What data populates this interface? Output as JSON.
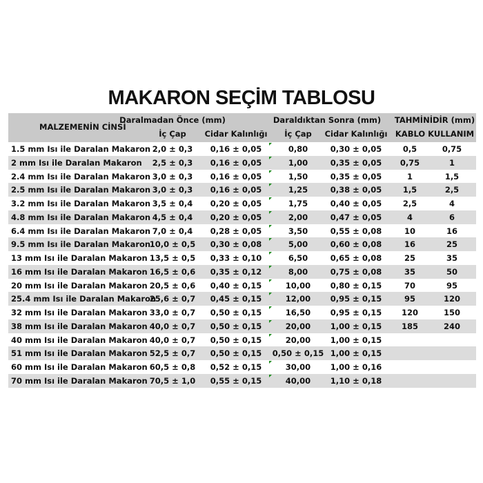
{
  "title": "MAKARON SEÇİM TABLOSU",
  "header": {
    "material": "MALZEMENİN CİNSİ",
    "before": "Daralmadan Önce (mm)",
    "after": "Daraldıktan Sonra (mm)",
    "estimate": "TAHMİNİDİR (mm)",
    "inner1": "İç Çap",
    "wall1": "Cidar Kalınlığı",
    "inner2": "İç Çap",
    "wall2": "Cidar Kalınlığı",
    "cable": "KABLO KULLANIM"
  },
  "rows": [
    [
      "1.5 mm Isı ile Daralan Makaron",
      "2,0 ± 0,3",
      "0,16 ± 0,05",
      "0,80",
      "0,30 ± 0,05",
      "0,5",
      "0,75"
    ],
    [
      "2 mm Isı ile Daralan Makaron",
      "2,5 ± 0,3",
      "0,16 ± 0,05",
      "1,00",
      "0,35 ± 0,05",
      "0,75",
      "1"
    ],
    [
      "2.4 mm Isı ile Daralan Makaron",
      "3,0 ± 0,3",
      "0,16 ± 0,05",
      "1,50",
      "0,35 ± 0,05",
      "1",
      "1,5"
    ],
    [
      "2.5 mm Isı ile Daralan Makaron",
      "3,0 ± 0,3",
      "0,16 ± 0,05",
      "1,25",
      "0,38 ± 0,05",
      "1,5",
      "2,5"
    ],
    [
      "3.2 mm Isı ile Daralan Makaron",
      "3,5 ± 0,4",
      "0,20 ± 0,05",
      "1,75",
      "0,40 ± 0,05",
      "2,5",
      "4"
    ],
    [
      "4.8 mm Isı ile Daralan Makaron",
      "4,5 ± 0,4",
      "0,20 ± 0,05",
      "2,00",
      "0,47 ± 0,05",
      "4",
      "6"
    ],
    [
      "6.4 mm Isı ile Daralan Makaron",
      "7,0 ± 0,4",
      "0,28 ± 0,05",
      "3,50",
      "0,55 ± 0,08",
      "10",
      "16"
    ],
    [
      "9.5 mm Isı ile Daralan Makaron",
      "10,0 ± 0,5",
      "0,30 ± 0,08",
      "5,00",
      "0,60 ± 0,08",
      "16",
      "25"
    ],
    [
      "13 mm Isı ile Daralan Makaron",
      "13,5 ± 0,5",
      "0,33 ± 0,10",
      "6,50",
      "0,65 ± 0,08",
      "25",
      "35"
    ],
    [
      "16 mm Isı ile Daralan Makaron",
      "16,5 ± 0,6",
      "0,35 ± 0,12",
      "8,00",
      "0,75 ± 0,08",
      "35",
      "50"
    ],
    [
      "20 mm Isı ile Daralan Makaron",
      "20,5 ± 0,6",
      "0,40 ± 0,15",
      "10,00",
      "0,80 ± 0,15",
      "70",
      "95"
    ],
    [
      "25.4 mm Isı ile Daralan Makaron",
      "25,6 ± 0,7",
      "0,45 ± 0,15",
      "12,00",
      "0,95 ± 0,15",
      "95",
      "120"
    ],
    [
      "32 mm Isı ile Daralan Makaron",
      "33,0 ± 0,7",
      "0,50 ± 0,15",
      "16,50",
      "0,95 ± 0,15",
      "120",
      "150"
    ],
    [
      "38 mm Isı ile Daralan Makaron",
      "40,0 ± 0,7",
      "0,50 ± 0,15",
      "20,00",
      "1,00 ± 0,15",
      "185",
      "240"
    ],
    [
      "40 mm Isı ile Daralan Makaron",
      "40,0 ± 0,7",
      "0,50 ± 0,15",
      "20,00",
      "1,00 ± 0,15",
      "",
      ""
    ],
    [
      "51 mm Isı ile Daralan Makaron",
      "52,5 ± 0,7",
      "0,50 ± 0,15",
      "0,50 ± 0,15",
      "1,00 ± 0,15",
      "",
      ""
    ],
    [
      "60 mm Isı ile Daralan Makaron",
      "60,5 ± 0,8",
      "0,52 ± 0,15",
      "30,00",
      "1,00 ± 0,16",
      "",
      ""
    ],
    [
      "70 mm Isı ile Daralan Makaron",
      "70,5 ± 1,0",
      "0,55 ± 0,15",
      "40,00",
      "1,10 ± 0,18",
      "",
      ""
    ]
  ]
}
